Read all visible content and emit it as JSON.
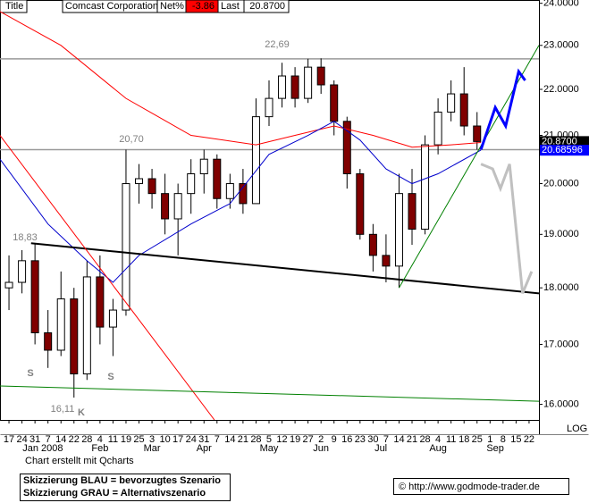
{
  "chart_data": {
    "type": "candlestick",
    "header": {
      "title": "Title",
      "name": "Comcast Corporation",
      "net_label": "Net%",
      "net": -3.86,
      "last_label": "Last",
      "last": "20.8700"
    },
    "categories": [
      "17",
      "24",
      "31",
      "7",
      "14",
      "22",
      "28",
      "4",
      "11",
      "19",
      "25",
      "3",
      "10",
      "17",
      "24",
      "31",
      "7",
      "14",
      "21",
      "28",
      "5",
      "12",
      "19",
      "27",
      "2",
      "9",
      "16",
      "23",
      "30",
      "7",
      "14",
      "21",
      "28",
      "4",
      "11",
      "18",
      "25",
      "1",
      "8",
      "15",
      "22"
    ],
    "month_labels": [
      "Jan 2008",
      "Feb",
      "Mar",
      "Apr",
      "May",
      "Jun",
      "Jul",
      "Aug",
      "Sep"
    ],
    "open": [
      18.0,
      18.1,
      18.5,
      17.2,
      16.9,
      17.8,
      16.5,
      18.2,
      17.3,
      17.6,
      20.0,
      20.1,
      19.8,
      19.3,
      19.8,
      20.2,
      20.5,
      19.7,
      20.0,
      19.6,
      21.4,
      21.8,
      22.3,
      21.8,
      22.5,
      22.1,
      21.3,
      20.2,
      19.0,
      18.6,
      18.4,
      19.8,
      19.1,
      20.8,
      21.5,
      21.9,
      21.2,
      null,
      null,
      null,
      null
    ],
    "high": [
      18.6,
      18.7,
      18.83,
      17.6,
      18.3,
      18.0,
      18.5,
      18.6,
      17.8,
      20.7,
      20.4,
      20.3,
      20.2,
      20.0,
      20.5,
      20.7,
      20.6,
      20.2,
      20.3,
      21.8,
      22.2,
      22.6,
      22.5,
      22.69,
      22.7,
      22.2,
      21.4,
      20.3,
      19.2,
      19.0,
      20.2,
      20.3,
      21.0,
      21.8,
      22.2,
      22.5,
      21.5,
      null,
      null,
      null,
      null
    ],
    "low": [
      17.6,
      17.9,
      17.0,
      16.6,
      16.8,
      16.11,
      16.4,
      17.0,
      16.8,
      17.5,
      19.6,
      19.5,
      19.0,
      18.6,
      19.4,
      19.8,
      19.5,
      19.5,
      19.4,
      19.6,
      21.2,
      21.6,
      21.6,
      21.7,
      21.9,
      21.0,
      19.9,
      18.9,
      18.3,
      18.1,
      18.0,
      18.8,
      19.0,
      20.6,
      21.3,
      21.0,
      20.7,
      null,
      null,
      null,
      null
    ],
    "close": [
      18.1,
      18.5,
      17.2,
      16.9,
      17.8,
      16.5,
      18.2,
      17.3,
      17.6,
      20.0,
      20.1,
      19.8,
      19.3,
      19.8,
      20.2,
      20.5,
      19.7,
      20.0,
      19.6,
      21.4,
      21.8,
      22.3,
      21.8,
      22.5,
      22.1,
      21.3,
      20.2,
      19.0,
      18.6,
      18.4,
      19.8,
      19.1,
      20.8,
      21.5,
      21.9,
      21.2,
      20.87,
      null,
      null,
      null,
      null
    ],
    "up_color": "#ffffff",
    "down_color": "#800000",
    "xlim": [
      -0.69,
      40.76
    ],
    "ylim": [
      15.75,
      24.08
    ],
    "log_scale": true,
    "log_label": "LOG",
    "yticks": [
      {
        "value": 16,
        "label": "16.0000"
      },
      {
        "value": 17,
        "label": "17.0000"
      },
      {
        "value": 18,
        "label": "18.0000"
      },
      {
        "value": 19,
        "label": "19.0000"
      },
      {
        "value": 20,
        "label": "20.0000"
      },
      {
        "value": 21,
        "label": "21.0000"
      },
      {
        "value": 22,
        "label": "22.0000"
      },
      {
        "value": 23,
        "label": "23.0000"
      },
      {
        "value": 24,
        "label": "24.0000"
      }
    ],
    "price_tags": [
      {
        "value": 20.87,
        "label": "20.8700",
        "color": "#000000"
      },
      {
        "value": 20.68596,
        "label": "20.68596",
        "color": "#0000ff"
      }
    ],
    "hlines": [
      {
        "value": 22.69,
        "color": "#999999"
      },
      {
        "value": 20.7,
        "color": "#999999"
      }
    ],
    "overlays": [
      {
        "color": "#ff0000",
        "width": 1,
        "x": [
          -0.69,
          4,
          9,
          14,
          19,
          22,
          25,
          28,
          31,
          34,
          36.3
        ],
        "y": [
          23.8,
          23.0,
          21.8,
          21.0,
          20.8,
          21.0,
          21.2,
          21.0,
          20.75,
          20.8,
          20.85
        ]
      },
      {
        "color": "#0000cc",
        "width": 1,
        "x": [
          -0.69,
          3,
          6,
          8,
          10,
          14,
          17,
          20,
          23,
          25,
          27,
          29,
          31,
          33,
          36.3
        ],
        "y": [
          20.5,
          19.2,
          18.5,
          18.1,
          18.6,
          19.2,
          19.6,
          20.6,
          21.0,
          21.3,
          20.9,
          20.3,
          20.0,
          20.2,
          20.69
        ]
      },
      {
        "color": "#000000",
        "width": 2,
        "x": [
          1.7,
          40.76
        ],
        "y": [
          18.83,
          17.9
        ]
      },
      {
        "color": "#ff0000",
        "width": 1,
        "x": [
          -0.69,
          15.8
        ],
        "y": [
          21.0,
          15.75
        ]
      },
      {
        "color": "#008000",
        "width": 1,
        "x": [
          -0.69,
          40.76
        ],
        "y": [
          16.3,
          16.05
        ]
      },
      {
        "color": "#008000",
        "width": 1,
        "x": [
          30,
          40.76
        ],
        "y": [
          18.0,
          23.0
        ]
      },
      {
        "color": "#0000ff",
        "width": 3,
        "x": [
          36.3,
          37.4,
          38.2,
          39.2,
          39.7
        ],
        "y": [
          20.7,
          21.6,
          21.2,
          22.4,
          22.2
        ]
      },
      {
        "color": "#c0c0c0",
        "width": 3,
        "x": [
          36.3,
          37.2,
          37.8,
          38.5,
          39.5,
          40.2
        ],
        "y": [
          20.4,
          20.3,
          19.9,
          20.4,
          17.9,
          18.3
        ]
      }
    ],
    "annotations": [
      "22,69",
      "20,70",
      "18,83",
      "16,11",
      "K",
      "S",
      "S"
    ],
    "credit": "Chart erstellt mit Qcharts",
    "legend_lines": [
      "Skizzierung BLAU = bevorzugtes Szenario",
      "Skizzierung GRAU = Alternativszenario"
    ],
    "source": "© http://www.godmode-trader.de"
  }
}
